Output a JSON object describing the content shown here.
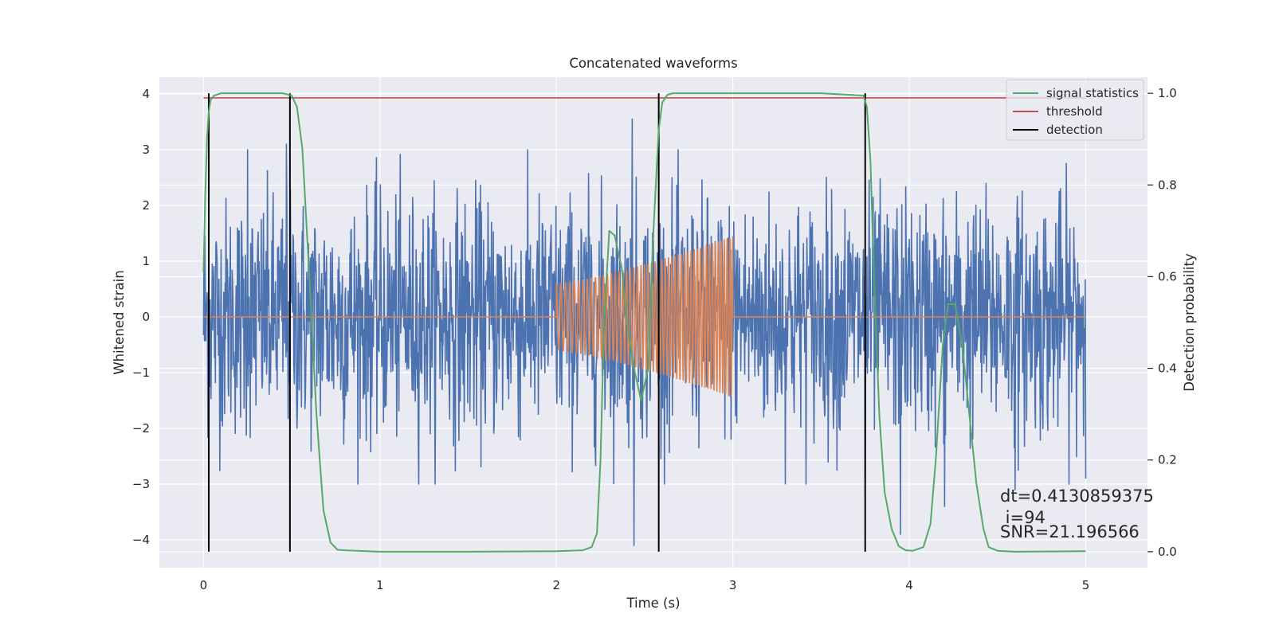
{
  "chart_data": {
    "type": "line",
    "title": "Concatenated waveforms",
    "xlabel": "Time (s)",
    "ylabel": "Whitened strain",
    "y2label": "Detection probability",
    "xlim": [
      -0.25,
      5.35
    ],
    "ylim": [
      -4.5,
      4.3
    ],
    "y2lim": [
      -0.035,
      1.035
    ],
    "xticks": [
      0,
      1,
      2,
      3,
      4,
      5
    ],
    "yticks": [
      -4,
      -3,
      -2,
      -1,
      0,
      1,
      2,
      3,
      4
    ],
    "y2ticks": [
      0.0,
      0.2,
      0.4,
      0.6,
      0.8,
      1.0
    ],
    "xtick_labels": [
      "0",
      "1",
      "2",
      "3",
      "4",
      "5"
    ],
    "ytick_labels": [
      "−4",
      "−3",
      "−2",
      "−1",
      "0",
      "1",
      "2",
      "3",
      "4"
    ],
    "y2tick_labels": [
      "0.0",
      "0.2",
      "0.4",
      "0.6",
      "0.8",
      "1.0"
    ],
    "grid": true,
    "legend_position": "top-right",
    "legend": [
      "signal statistics",
      "threshold",
      "detection"
    ],
    "colors": {
      "strain": "#4c72b0",
      "template": "#dd8452",
      "signal_statistics": "#55a868",
      "threshold": "#c44e52",
      "detection": "#000000",
      "axes_bg": "#eaeaf2",
      "grid": "#ffffff"
    },
    "series": [
      {
        "axis": "left",
        "color": "#4c72b0",
        "x_range": [
          0,
          5
        ],
        "approx_amplitude": "noise, peaks about ±3.5",
        "extremes": [
          [
            0.25,
            3.0
          ],
          [
            0.47,
            3.1
          ],
          [
            2.43,
            3.55
          ],
          [
            2.44,
            -4.1
          ],
          [
            3.75,
            -3.2
          ],
          [
            3.95,
            -3.9
          ],
          [
            4.2,
            -3.4
          ],
          [
            4.6,
            -3.1
          ],
          [
            5.0,
            -2.9
          ]
        ]
      },
      {
        "axis": "left",
        "color": "#dd8452",
        "x": [
          0,
          2.0,
          2.0,
          3.0,
          3.0,
          5.0
        ],
        "envelope": [
          0,
          0,
          0.6,
          1.45,
          0,
          0
        ],
        "chirp_start": 2.0,
        "chirp_end": 3.0
      },
      {
        "name": "signal statistics",
        "axis": "right",
        "color": "#55a868",
        "x": [
          0,
          0.01,
          0.02,
          0.03,
          0.04,
          0.06,
          0.1,
          0.3,
          0.45,
          0.5,
          0.53,
          0.56,
          0.6,
          0.64,
          0.68,
          0.72,
          0.76,
          0.8,
          1.0,
          1.5,
          2.0,
          2.15,
          2.2,
          2.23,
          2.25,
          2.27,
          2.3,
          2.33,
          2.37,
          2.4,
          2.44,
          2.48,
          2.52,
          2.55,
          2.58,
          2.6,
          2.63,
          2.66,
          2.7,
          3.0,
          3.5,
          3.74,
          3.76,
          3.78,
          3.8,
          3.83,
          3.86,
          3.9,
          3.94,
          3.98,
          4.02,
          4.08,
          4.12,
          4.15,
          4.19,
          4.22,
          4.26,
          4.3,
          4.34,
          4.38,
          4.42,
          4.45,
          4.5,
          4.6,
          5.0
        ],
        "y": [
          0.61,
          0.78,
          0.9,
          0.96,
          0.985,
          0.995,
          1.0,
          1.0,
          1.0,
          0.995,
          0.97,
          0.88,
          0.6,
          0.3,
          0.09,
          0.02,
          0.004,
          0.003,
          0.0,
          0.0,
          0.001,
          0.003,
          0.01,
          0.04,
          0.2,
          0.5,
          0.7,
          0.69,
          0.62,
          0.5,
          0.4,
          0.33,
          0.4,
          0.7,
          0.92,
          0.98,
          0.997,
          1.0,
          1.0,
          1.0,
          1.0,
          0.995,
          0.97,
          0.85,
          0.6,
          0.3,
          0.13,
          0.05,
          0.012,
          0.003,
          0.002,
          0.01,
          0.06,
          0.2,
          0.45,
          0.54,
          0.54,
          0.45,
          0.3,
          0.15,
          0.05,
          0.01,
          0.002,
          0.0,
          0.001
        ]
      },
      {
        "name": "threshold",
        "axis": "right",
        "color": "#c44e52",
        "x": [
          0,
          5
        ],
        "y": [
          0.99,
          0.99
        ]
      },
      {
        "name": "detection",
        "axis": "right",
        "color": "#000000",
        "type": "vlines",
        "x": [
          0.03,
          0.49,
          2.58,
          3.75
        ],
        "ymin": 0.0,
        "ymax": 1.0
      }
    ],
    "annotations": [
      "dt=0.4130859375",
      " i=94",
      "SNR=21.196566"
    ]
  }
}
